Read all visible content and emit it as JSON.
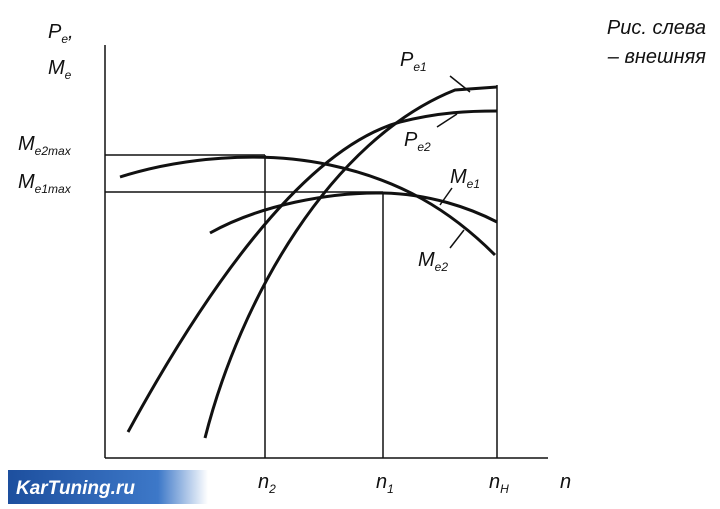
{
  "caption": {
    "line1": "Рис. слева",
    "line2": "– внешняя"
  },
  "watermark": "KarTuning.ru",
  "y_axis_label": {
    "line1": {
      "main": "P",
      "sub": "e",
      "suffix": ","
    },
    "line2": {
      "main": "M",
      "sub": "e"
    }
  },
  "x_axis_label": "n",
  "y_marks": [
    {
      "main": "M",
      "sub": "e2max"
    },
    {
      "main": "M",
      "sub": "e1max"
    }
  ],
  "x_marks": [
    {
      "main": "n",
      "sub": "2"
    },
    {
      "main": "n",
      "sub": "1"
    },
    {
      "main": "n",
      "sub": "Н"
    }
  ],
  "curve_labels": [
    {
      "main": "P",
      "sub": "e1"
    },
    {
      "main": "P",
      "sub": "e2"
    },
    {
      "main": "M",
      "sub": "e1"
    },
    {
      "main": "M",
      "sub": "e2"
    }
  ]
}
